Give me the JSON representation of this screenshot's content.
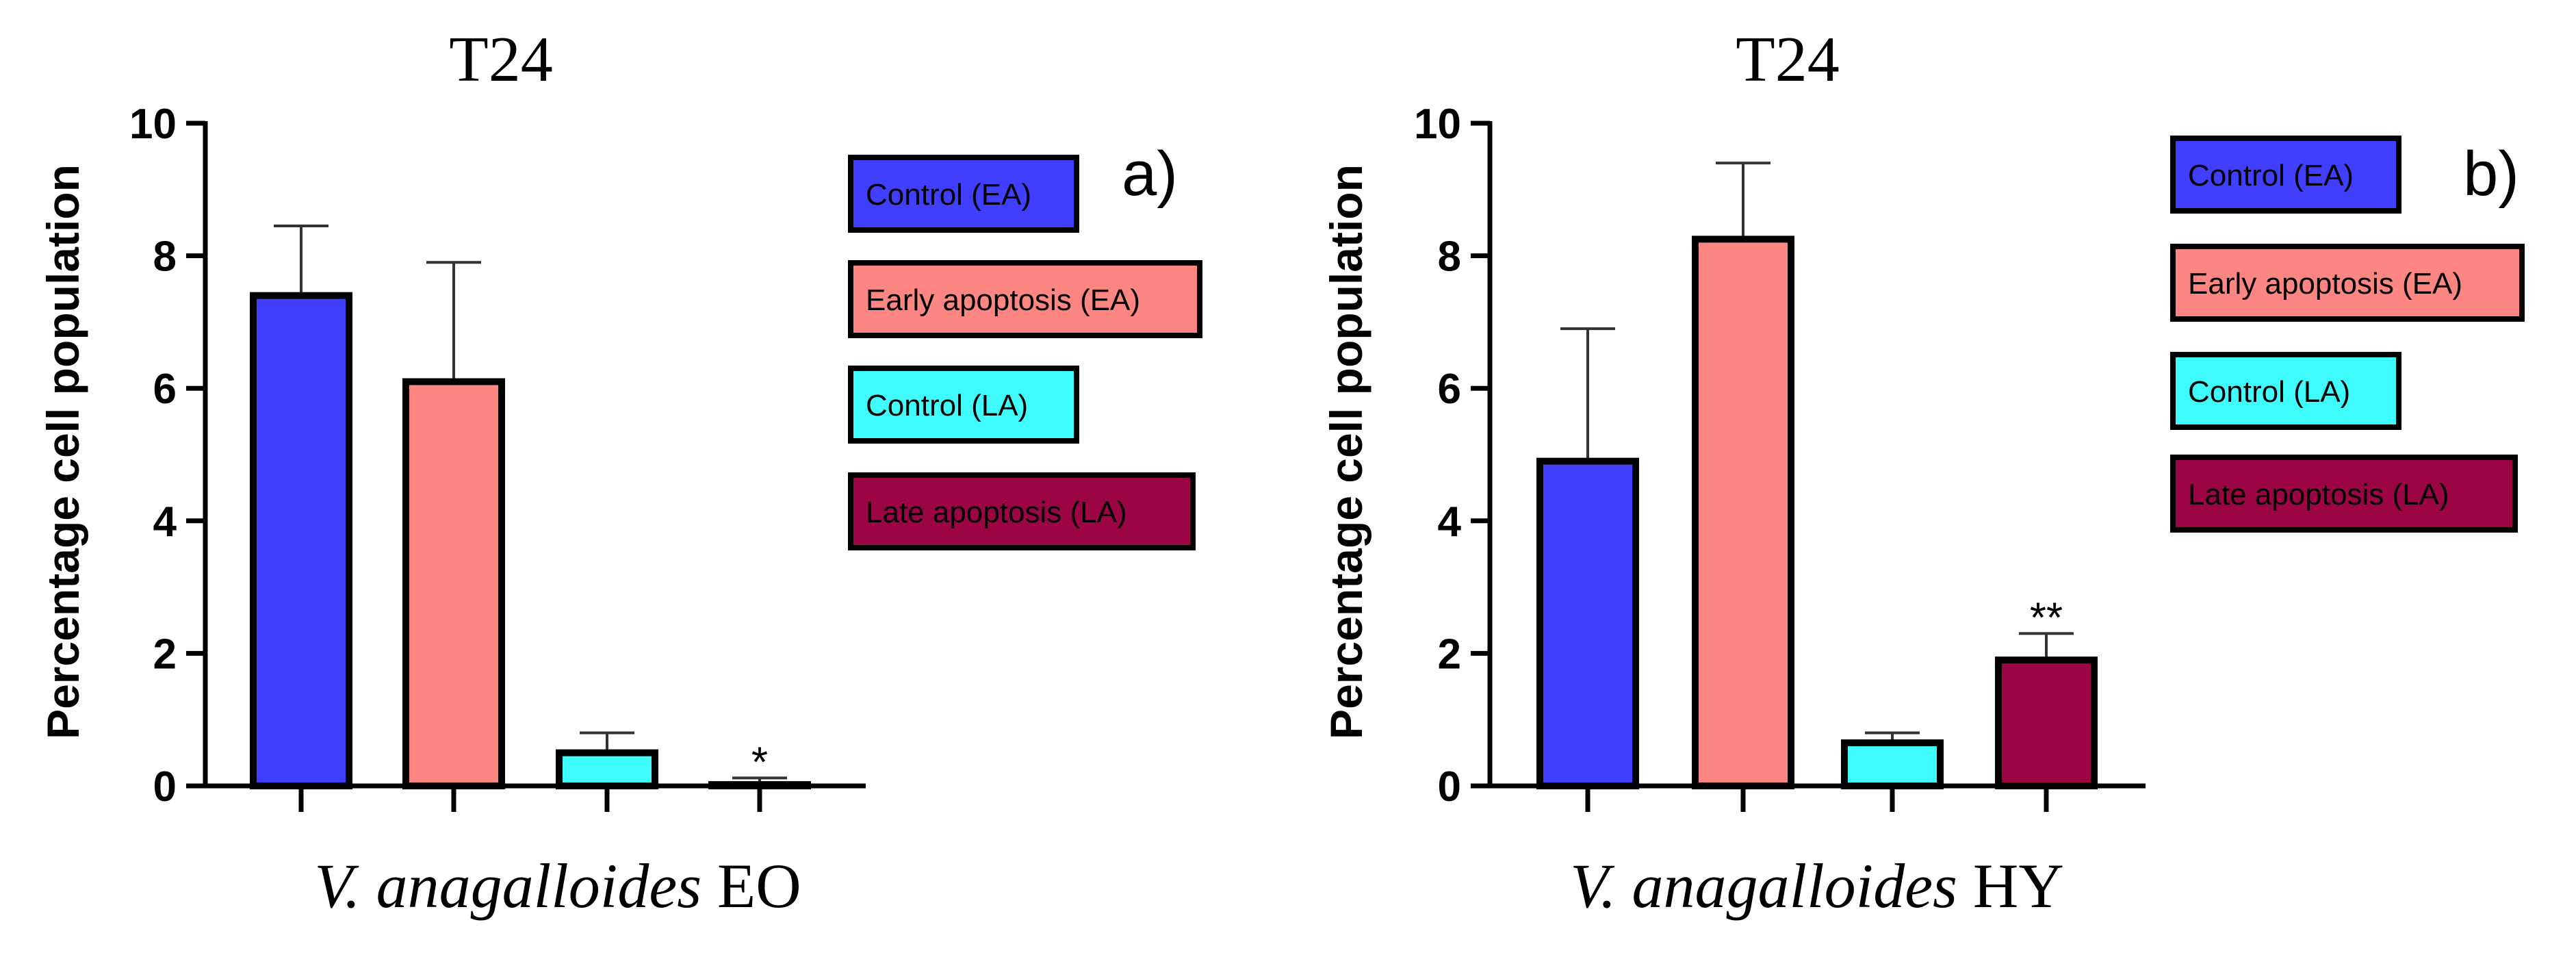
{
  "figure": {
    "panels": [
      "a)",
      "b)"
    ]
  },
  "colors": {
    "control_ea": "#3f3ffd",
    "early_apoptosis": "#fd8582",
    "control_la": "#40fbfb",
    "late_apoptosis": "#9b0544"
  },
  "chart_data": [
    {
      "type": "bar",
      "panel_label": "a)",
      "title": "T24",
      "xlabel_italic": "V. anagalloides",
      "xlabel_suffix": "EO",
      "ylabel": "Percentage cell population",
      "ylim": [
        0,
        10
      ],
      "yticks": [
        "0",
        "2",
        "4",
        "6",
        "8",
        "10"
      ],
      "categories": [
        "Control (EA)",
        "Early apoptosis (EA)",
        "Control (LA)",
        "Late apoptosis (LA)"
      ],
      "values": [
        7.4,
        6.1,
        0.5,
        0.02
      ],
      "errors": [
        1.05,
        1.8,
        0.3,
        0.1
      ],
      "annotations": [
        "",
        "",
        "",
        "*"
      ],
      "legend": [
        "Control (EA)",
        "Early apoptosis (EA)",
        "Control (LA)",
        "Late apoptosis (LA)"
      ],
      "legend_position": "right"
    },
    {
      "type": "bar",
      "panel_label": "b)",
      "title": "T24",
      "xlabel_italic": "V. anagalloides",
      "xlabel_suffix": "HY",
      "ylabel": "Percentage cell population",
      "ylim": [
        0,
        10
      ],
      "yticks": [
        "0",
        "2",
        "4",
        "6",
        "8",
        "10"
      ],
      "categories": [
        "Control (EA)",
        "Early apoptosis (EA)",
        "Control (LA)",
        "Late apoptosis (LA)"
      ],
      "values": [
        4.9,
        8.25,
        0.65,
        1.9
      ],
      "errors": [
        2.0,
        1.15,
        0.15,
        0.4
      ],
      "annotations": [
        "",
        "",
        "",
        "**"
      ],
      "legend": [
        "Control (EA)",
        "Early apoptosis (EA)",
        "Control (LA)",
        "Late apoptosis (LA)"
      ],
      "legend_position": "right"
    }
  ]
}
